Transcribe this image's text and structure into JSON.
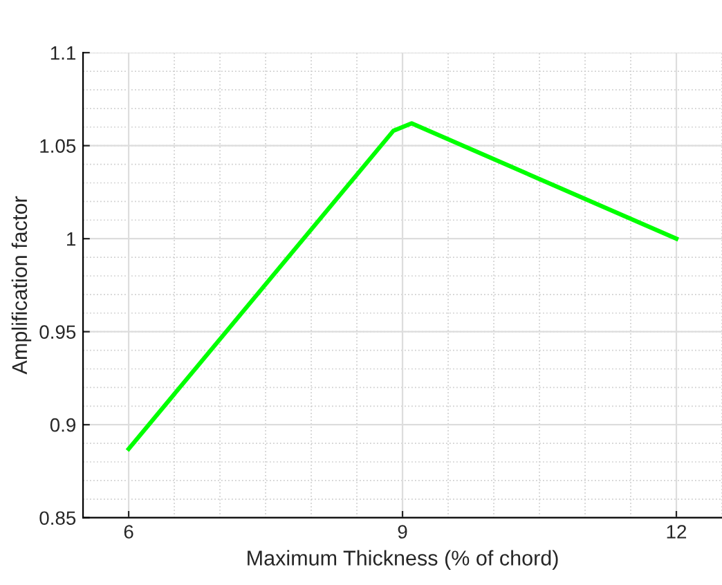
{
  "chart_data": {
    "type": "line",
    "xlabel": "Maximum Thickness (% of chord)",
    "ylabel": "Amplification factor",
    "x": [
      6,
      8.9,
      9.1,
      12
    ],
    "series": [
      {
        "color": "#00ff00",
        "values": [
          0.887,
          1.058,
          1.062,
          1.0
        ]
      }
    ],
    "xlim": [
      5.5,
      12.5
    ],
    "xticks": [
      6,
      9,
      12
    ],
    "ylim": [
      0.85,
      1.1
    ],
    "yticks": [
      0.85,
      0.9,
      0.95,
      1,
      1.05,
      1.1
    ],
    "grid": true,
    "marker": "none",
    "line_style": "solid"
  }
}
